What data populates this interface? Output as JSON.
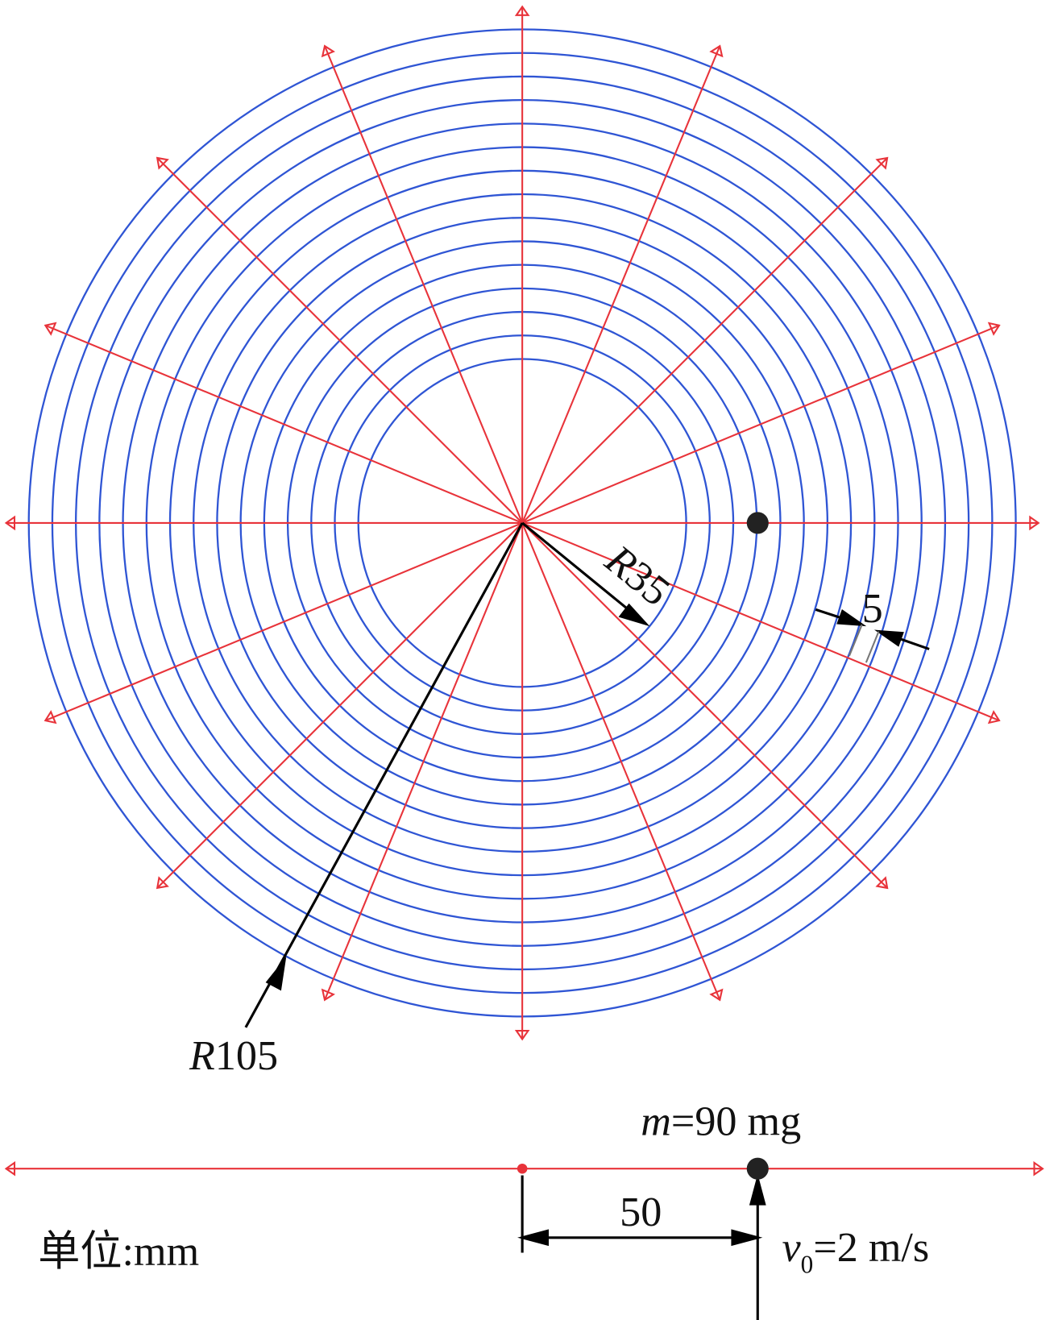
{
  "labels": {
    "r_inner": {
      "symbol": "R",
      "text": "35"
    },
    "r_outer": {
      "symbol": "R",
      "text": "105"
    },
    "pitch": "5",
    "offset": "50",
    "mass": {
      "symbol": "m",
      "text": "=90 mg"
    },
    "velocity": {
      "symbol": "v",
      "subscript": "0",
      "text": "=2 m/s"
    },
    "unit": "单位:mm"
  }
}
